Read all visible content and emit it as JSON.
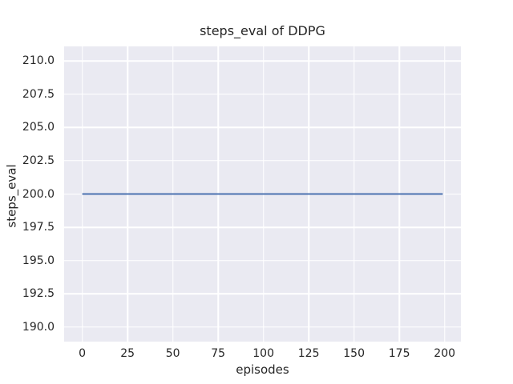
{
  "figure": {
    "background": "#ffffff"
  },
  "chart_data": {
    "type": "line",
    "title": "steps_eval of DDPG",
    "xlabel": "episodes",
    "ylabel": "steps_eval",
    "xlim": [
      -10,
      209
    ],
    "ylim": [
      188.9,
      211.1
    ],
    "xticks": [
      0,
      25,
      50,
      75,
      100,
      125,
      150,
      175,
      200
    ],
    "xtick_labels": [
      "0",
      "25",
      "50",
      "75",
      "100",
      "125",
      "150",
      "175",
      "200"
    ],
    "yticks": [
      190,
      192.5,
      195,
      197.5,
      200,
      202.5,
      205,
      207.5,
      210
    ],
    "ytick_labels": [
      "190.0",
      "192.5",
      "195.0",
      "197.5",
      "200.0",
      "202.5",
      "205.0",
      "207.5",
      "210.0"
    ],
    "grid": true,
    "legend": null,
    "plot_bg": "#eaeaf2",
    "grid_color": "#ffffff",
    "text_color": "#262626",
    "line_width": 2,
    "series": [
      {
        "name": "DDPG",
        "color": "#4c72b0",
        "x": [
          0,
          199
        ],
        "y": [
          200,
          200
        ]
      }
    ]
  }
}
